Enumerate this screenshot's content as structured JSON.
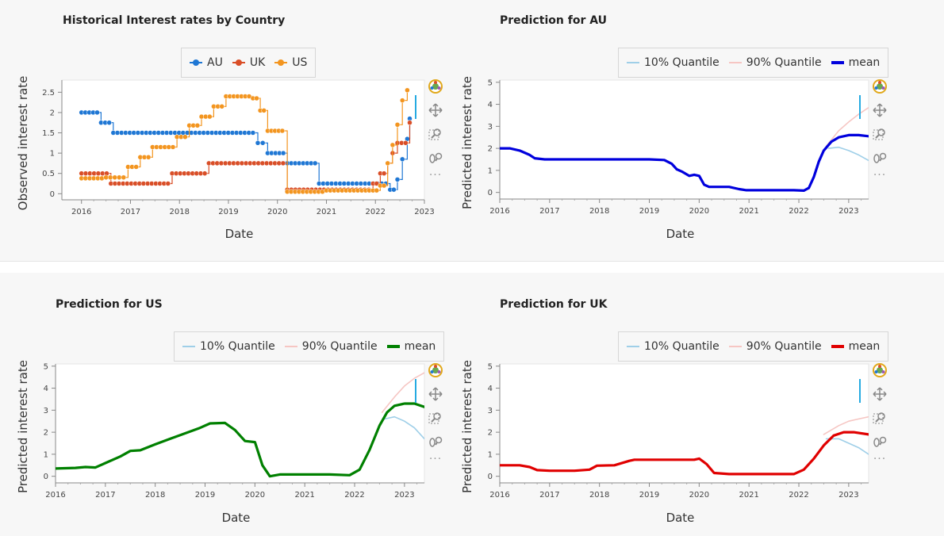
{
  "toolbar": {
    "logo_icon": "bokeh-logo-icon",
    "pan_icon": "pan-icon",
    "zoom_icon": "box-zoom-icon",
    "wheel_icon": "wheel-zoom-icon",
    "more_label": "···"
  },
  "colors": {
    "AU": "#1f77d4",
    "UK": "#d94e27",
    "US": "#f3951f",
    "q10": "#9fcfe8",
    "q90": "#f6c6c3",
    "mean_AU": "#0000dd",
    "mean_US": "#008000",
    "mean_UK": "#e00000"
  },
  "chart_data": [
    {
      "type": "line",
      "title": "Historical Interest rates by Country",
      "xlabel": "Date",
      "ylabel": "Observed interest rate",
      "xlim": [
        2015.6,
        2023.0
      ],
      "ylim": [
        -0.15,
        2.8
      ],
      "xticks": [
        "2016",
        "2017",
        "2018",
        "2019",
        "2020",
        "2021",
        "2022",
        "2023"
      ],
      "xtick_values": [
        2016,
        2017,
        2018,
        2019,
        2020,
        2021,
        2022,
        2023
      ],
      "yticks": [
        "0",
        "0.5",
        "1",
        "1.5",
        "2",
        "2.5"
      ],
      "ytick_values": [
        0,
        0.5,
        1,
        1.5,
        2,
        2.5
      ],
      "legend": [
        "AU",
        "UK",
        "US"
      ],
      "legend_position": "top-center",
      "series": [
        {
          "name": "AU",
          "step": true,
          "markers": true,
          "x": [
            2016.0,
            2016.4,
            2016.65,
            2019.5,
            2019.6,
            2019.8,
            2020.2,
            2020.85,
            2022.3,
            2022.45,
            2022.55,
            2022.65,
            2022.7
          ],
          "values": [
            2.0,
            1.75,
            1.5,
            1.5,
            1.25,
            1.0,
            0.75,
            0.25,
            0.1,
            0.35,
            0.85,
            1.35,
            1.85
          ]
        },
        {
          "name": "UK",
          "step": true,
          "markers": true,
          "x": [
            2016.0,
            2016.6,
            2017.85,
            2018.6,
            2020.2,
            2021.95,
            2022.1,
            2022.25,
            2022.35,
            2022.45,
            2022.7
          ],
          "values": [
            0.5,
            0.25,
            0.5,
            0.75,
            0.1,
            0.25,
            0.5,
            0.75,
            1.0,
            1.25,
            1.75
          ]
        },
        {
          "name": "US",
          "step": true,
          "markers": true,
          "x": [
            2016.0,
            2016.5,
            2016.95,
            2017.2,
            2017.45,
            2017.95,
            2018.2,
            2018.45,
            2018.7,
            2018.95,
            2019.5,
            2019.65,
            2019.8,
            2020.1,
            2020.2,
            2021.0,
            2021.8,
            2022.1,
            2022.25,
            2022.35,
            2022.45,
            2022.55,
            2022.65
          ],
          "values": [
            0.38,
            0.4,
            0.66,
            0.9,
            1.15,
            1.4,
            1.68,
            1.9,
            2.15,
            2.4,
            2.35,
            2.05,
            1.55,
            1.55,
            0.05,
            0.08,
            0.08,
            0.2,
            0.75,
            1.2,
            1.7,
            2.3,
            2.55
          ]
        }
      ]
    },
    {
      "type": "line",
      "title": "Prediction for AU",
      "xlabel": "Date",
      "ylabel": "Predicted interest rate",
      "xlim": [
        2016.0,
        2023.4
      ],
      "ylim": [
        -0.3,
        5.1
      ],
      "xticks": [
        "2016",
        "2017",
        "2018",
        "2019",
        "2020",
        "2021",
        "2022",
        "2023"
      ],
      "xtick_values": [
        2016,
        2017,
        2018,
        2019,
        2020,
        2021,
        2022,
        2023
      ],
      "yticks": [
        "0",
        "1",
        "2",
        "3",
        "4",
        "5"
      ],
      "ytick_values": [
        0,
        1,
        2,
        3,
        4,
        5
      ],
      "legend": [
        "10% Quantile",
        "90% Quantile",
        "mean"
      ],
      "legend_position": "top-right",
      "series": [
        {
          "name": "10% Quantile",
          "x": [
            2022.6,
            2022.8,
            2023.0,
            2023.2,
            2023.4
          ],
          "values": [
            2.0,
            2.05,
            1.9,
            1.7,
            1.45
          ]
        },
        {
          "name": "90% Quantile",
          "x": [
            2022.55,
            2022.8,
            2023.0,
            2023.2,
            2023.4
          ],
          "values": [
            2.1,
            2.8,
            3.2,
            3.55,
            3.85
          ]
        },
        {
          "name": "mean",
          "x": [
            2016.0,
            2016.2,
            2016.4,
            2016.6,
            2016.7,
            2016.9,
            2017.2,
            2017.6,
            2018.0,
            2018.5,
            2019.0,
            2019.3,
            2019.45,
            2019.55,
            2019.65,
            2019.8,
            2019.9,
            2020.0,
            2020.1,
            2020.2,
            2020.4,
            2020.6,
            2020.8,
            2020.95,
            2021.2,
            2021.6,
            2021.9,
            2022.1,
            2022.2,
            2022.3,
            2022.4,
            2022.5,
            2022.65,
            2022.8,
            2023.0,
            2023.2,
            2023.4
          ],
          "values": [
            2.0,
            2.0,
            1.9,
            1.7,
            1.55,
            1.5,
            1.5,
            1.5,
            1.5,
            1.5,
            1.5,
            1.47,
            1.3,
            1.05,
            0.95,
            0.75,
            0.8,
            0.75,
            0.35,
            0.25,
            0.25,
            0.25,
            0.15,
            0.1,
            0.1,
            0.1,
            0.1,
            0.08,
            0.2,
            0.7,
            1.4,
            1.9,
            2.3,
            2.5,
            2.6,
            2.6,
            2.55
          ]
        }
      ]
    },
    {
      "type": "line",
      "title": "Prediction for US",
      "xlabel": "Date",
      "ylabel": "Predicted interest rate",
      "xlim": [
        2016.0,
        2023.4
      ],
      "ylim": [
        -0.3,
        5.1
      ],
      "xticks": [
        "2016",
        "2017",
        "2018",
        "2019",
        "2020",
        "2021",
        "2022",
        "2023"
      ],
      "xtick_values": [
        2016,
        2017,
        2018,
        2019,
        2020,
        2021,
        2022,
        2023
      ],
      "yticks": [
        "0",
        "1",
        "2",
        "3",
        "4",
        "5"
      ],
      "ytick_values": [
        0,
        1,
        2,
        3,
        4,
        5
      ],
      "legend": [
        "10% Quantile",
        "90% Quantile",
        "mean"
      ],
      "legend_position": "top-right",
      "series": [
        {
          "name": "10% Quantile",
          "x": [
            2022.6,
            2022.8,
            2023.0,
            2023.2,
            2023.4
          ],
          "values": [
            2.6,
            2.7,
            2.5,
            2.2,
            1.7
          ]
        },
        {
          "name": "90% Quantile",
          "x": [
            2022.55,
            2022.8,
            2023.0,
            2023.2,
            2023.4
          ],
          "values": [
            2.9,
            3.6,
            4.1,
            4.45,
            4.7
          ]
        },
        {
          "name": "mean",
          "x": [
            2016.0,
            2016.4,
            2016.6,
            2016.8,
            2017.0,
            2017.3,
            2017.5,
            2017.7,
            2018.0,
            2018.3,
            2018.6,
            2018.9,
            2019.1,
            2019.4,
            2019.6,
            2019.8,
            2020.0,
            2020.15,
            2020.3,
            2020.5,
            2021.0,
            2021.5,
            2021.9,
            2022.1,
            2022.3,
            2022.5,
            2022.65,
            2022.8,
            2023.0,
            2023.2,
            2023.4
          ],
          "values": [
            0.35,
            0.38,
            0.42,
            0.4,
            0.6,
            0.9,
            1.15,
            1.18,
            1.45,
            1.7,
            1.95,
            2.2,
            2.4,
            2.42,
            2.1,
            1.6,
            1.55,
            0.5,
            0.0,
            0.08,
            0.08,
            0.08,
            0.05,
            0.3,
            1.2,
            2.3,
            2.9,
            3.2,
            3.3,
            3.3,
            3.15
          ]
        }
      ]
    },
    {
      "type": "line",
      "title": "Prediction for UK",
      "xlabel": "Date",
      "ylabel": "Predicted interest rate",
      "xlim": [
        2016.0,
        2023.4
      ],
      "ylim": [
        -0.3,
        5.1
      ],
      "xticks": [
        "2016",
        "2017",
        "2018",
        "2019",
        "2020",
        "2021",
        "2022",
        "2023"
      ],
      "xtick_values": [
        2016,
        2017,
        2018,
        2019,
        2020,
        2021,
        2022,
        2023
      ],
      "yticks": [
        "0",
        "1",
        "2",
        "3",
        "4",
        "5"
      ],
      "ytick_values": [
        0,
        1,
        2,
        3,
        4,
        5
      ],
      "legend": [
        "10% Quantile",
        "90% Quantile",
        "mean"
      ],
      "legend_position": "top-right",
      "series": [
        {
          "name": "10% Quantile",
          "x": [
            2022.55,
            2022.8,
            2023.0,
            2023.2,
            2023.4
          ],
          "values": [
            1.7,
            1.7,
            1.5,
            1.3,
            1.0
          ]
        },
        {
          "name": "90% Quantile",
          "x": [
            2022.5,
            2022.8,
            2023.0,
            2023.2,
            2023.4
          ],
          "values": [
            1.9,
            2.3,
            2.5,
            2.6,
            2.7
          ]
        },
        {
          "name": "mean",
          "x": [
            2016.0,
            2016.4,
            2016.6,
            2016.75,
            2017.0,
            2017.5,
            2017.8,
            2017.95,
            2018.3,
            2018.6,
            2018.7,
            2019.0,
            2019.5,
            2019.9,
            2020.0,
            2020.15,
            2020.3,
            2020.6,
            2021.0,
            2021.6,
            2021.9,
            2022.1,
            2022.3,
            2022.5,
            2022.7,
            2022.9,
            2023.1,
            2023.4
          ],
          "values": [
            0.5,
            0.5,
            0.42,
            0.28,
            0.25,
            0.25,
            0.3,
            0.48,
            0.5,
            0.7,
            0.75,
            0.75,
            0.75,
            0.75,
            0.8,
            0.55,
            0.15,
            0.1,
            0.1,
            0.1,
            0.1,
            0.3,
            0.8,
            1.4,
            1.85,
            2.0,
            2.0,
            1.9
          ]
        }
      ]
    }
  ]
}
